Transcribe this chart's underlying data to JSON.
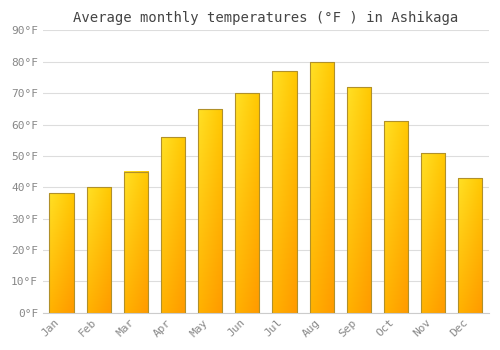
{
  "months": [
    "Jan",
    "Feb",
    "Mar",
    "Apr",
    "May",
    "Jun",
    "Jul",
    "Aug",
    "Sep",
    "Oct",
    "Nov",
    "Dec"
  ],
  "values": [
    38,
    40,
    45,
    56,
    65,
    70,
    77,
    80,
    72,
    61,
    51,
    43
  ],
  "bar_color_bottom": "#F5A623",
  "bar_color_top": "#FFD04A",
  "bar_color_left": "#FFD04A",
  "bar_outline": "#B8860B",
  "title": "Average monthly temperatures (°F ) in Ashikaga",
  "ylim": [
    0,
    90
  ],
  "yticks": [
    0,
    10,
    20,
    30,
    40,
    50,
    60,
    70,
    80,
    90
  ],
  "ytick_labels": [
    "0°F",
    "10°F",
    "20°F",
    "30°F",
    "40°F",
    "50°F",
    "60°F",
    "70°F",
    "80°F",
    "90°F"
  ],
  "background_color": "#FFFFFF",
  "plot_bg_color": "#FFFFFF",
  "grid_color": "#DDDDDD",
  "title_fontsize": 10,
  "tick_fontsize": 8,
  "font_family": "monospace",
  "tick_color": "#888888",
  "bar_width": 0.65
}
